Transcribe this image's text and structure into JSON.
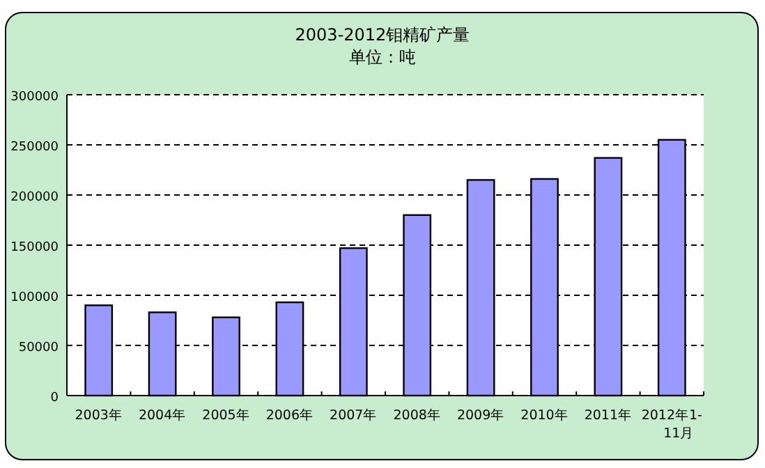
{
  "chart_data": {
    "type": "bar",
    "title": "2003-2012钼精矿产量",
    "subtitle": "单位：吨",
    "categories": [
      "2003年",
      "2004年",
      "2005年",
      "2006年",
      "2007年",
      "2008年",
      "2009年",
      "2010年",
      "2011年",
      "2012年1-11月"
    ],
    "values": [
      90000,
      83000,
      78000,
      93000,
      147000,
      180000,
      215000,
      216000,
      237000,
      255000
    ],
    "color": "#9999ff",
    "ylim": [
      0,
      300000
    ],
    "yticks": [
      0,
      50000,
      100000,
      150000,
      200000,
      250000,
      300000
    ],
    "grid": "y"
  }
}
